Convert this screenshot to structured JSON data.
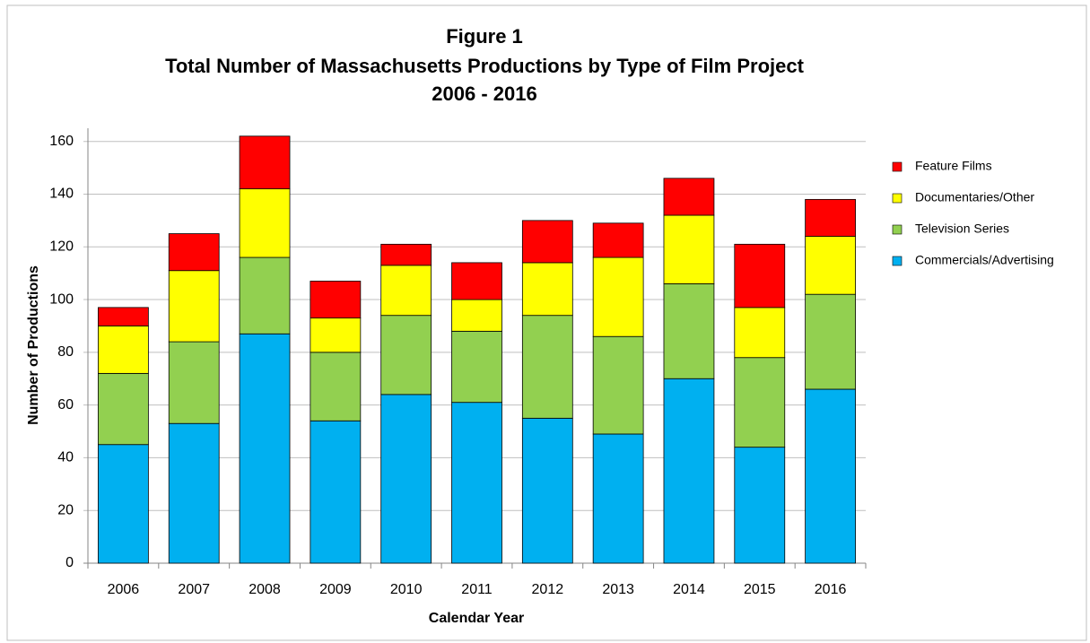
{
  "chart_data": {
    "type": "stacked_bar",
    "title": [
      "Figure 1",
      "Total Number of Massachusetts Productions by Type of Film Project",
      "2006 - 2016"
    ],
    "x_label": "Calendar Year",
    "y_label": "Number of Productions",
    "categories": [
      "2006",
      "2007",
      "2008",
      "2009",
      "2010",
      "2011",
      "2012",
      "2013",
      "2014",
      "2015",
      "2016"
    ],
    "series": [
      {
        "name": "Commercials/Advertising",
        "color": "#00b0f0",
        "values": [
          45,
          53,
          87,
          54,
          64,
          61,
          55,
          49,
          70,
          44,
          66
        ]
      },
      {
        "name": "Television Series",
        "color": "#92d050",
        "values": [
          27,
          31,
          29,
          26,
          30,
          27,
          39,
          37,
          36,
          34,
          36
        ]
      },
      {
        "name": "Documentaries/Other",
        "color": "#ffff00",
        "values": [
          18,
          27,
          26,
          13,
          19,
          12,
          20,
          30,
          26,
          19,
          22
        ]
      },
      {
        "name": "Feature Films",
        "color": "#ff0000",
        "values": [
          7,
          14,
          20,
          14,
          8,
          14,
          16,
          13,
          14,
          24,
          14
        ]
      }
    ],
    "ylim": [
      0,
      165
    ],
    "yticks": [
      0,
      20,
      40,
      60,
      80,
      100,
      120,
      140,
      160
    ],
    "grid": true,
    "legend": "right"
  }
}
